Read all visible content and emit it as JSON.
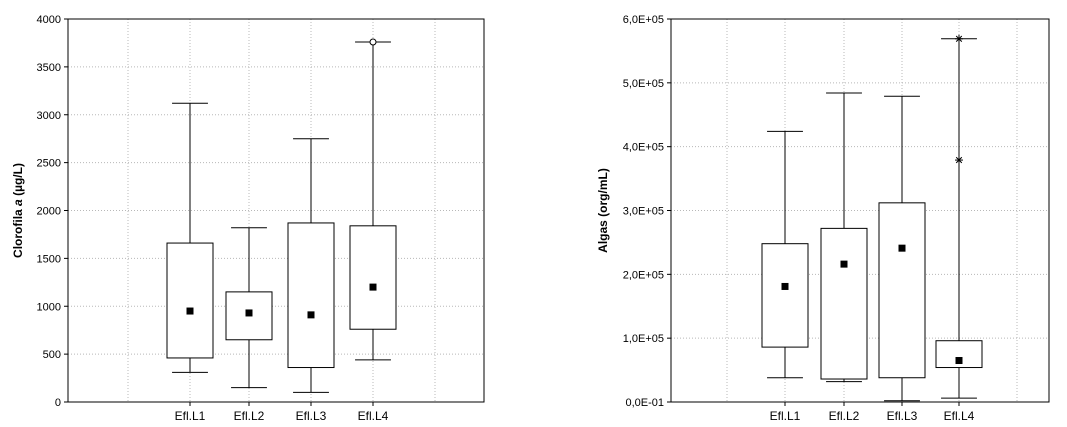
{
  "chart_data": [
    {
      "type": "box",
      "ylabel_parts": [
        {
          "text": "Clorofila ",
          "style": "normal"
        },
        {
          "text": "a",
          "style": "italic"
        },
        {
          "text": " (µg/L)",
          "style": "normal"
        }
      ],
      "ylim": [
        0,
        4000
      ],
      "yticks": [
        0,
        500,
        1000,
        1500,
        2000,
        2500,
        3000,
        3500,
        4000
      ],
      "ytick_labels": [
        "0",
        "500",
        "1000",
        "1500",
        "2000",
        "2500",
        "3000",
        "3500",
        "4000"
      ],
      "categories": [
        "Efl.L1",
        "Efl.L2",
        "Efl.L3",
        "Efl.L4"
      ],
      "boxes": [
        {
          "category": "Efl.L1",
          "whisker_low": 310,
          "q1": 460,
          "median": 950,
          "q3": 1660,
          "whisker_high": 3120,
          "outliers": [],
          "extremes": []
        },
        {
          "category": "Efl.L2",
          "whisker_low": 150,
          "q1": 650,
          "median": 930,
          "q3": 1150,
          "whisker_high": 1820,
          "outliers": [],
          "extremes": []
        },
        {
          "category": "Efl.L3",
          "whisker_low": 100,
          "q1": 360,
          "median": 910,
          "q3": 1870,
          "whisker_high": 2750,
          "outliers": [],
          "extremes": []
        },
        {
          "category": "Efl.L4",
          "whisker_low": 440,
          "q1": 760,
          "median": 1200,
          "q3": 1840,
          "whisker_high": 3760,
          "outliers": [
            3760
          ],
          "extremes": []
        }
      ],
      "grid": true
    },
    {
      "type": "box",
      "ylabel_parts": [
        {
          "text": "Algas (org/mL)",
          "style": "normal"
        }
      ],
      "ylim": [
        0,
        600000
      ],
      "yticks": [
        0,
        100000,
        200000,
        300000,
        400000,
        500000,
        600000
      ],
      "ytick_labels": [
        "0,0E-01",
        "1,0E+05",
        "2,0E+05",
        "3,0E+05",
        "4,0E+05",
        "5,0E+05",
        "6,0E+05"
      ],
      "categories": [
        "Efl.L1",
        "Efl.L2",
        "Efl.L3",
        "Efl.L4"
      ],
      "boxes": [
        {
          "category": "Efl.L1",
          "whisker_low": 38000,
          "q1": 86000,
          "median": 181000,
          "q3": 248000,
          "whisker_high": 424000,
          "outliers": [],
          "extremes": []
        },
        {
          "category": "Efl.L2",
          "whisker_low": 32000,
          "q1": 36000,
          "median": 216000,
          "q3": 272000,
          "whisker_high": 484000,
          "outliers": [],
          "extremes": []
        },
        {
          "category": "Efl.L3",
          "whisker_low": 2000,
          "q1": 38000,
          "median": 241000,
          "q3": 312000,
          "whisker_high": 479000,
          "outliers": [],
          "extremes": []
        },
        {
          "category": "Efl.L4",
          "whisker_low": 6000,
          "q1": 54000,
          "median": 65000,
          "q3": 96000,
          "whisker_high": 569000,
          "outliers": [],
          "extremes": [
            569000,
            379000
          ]
        }
      ],
      "grid": true
    }
  ]
}
